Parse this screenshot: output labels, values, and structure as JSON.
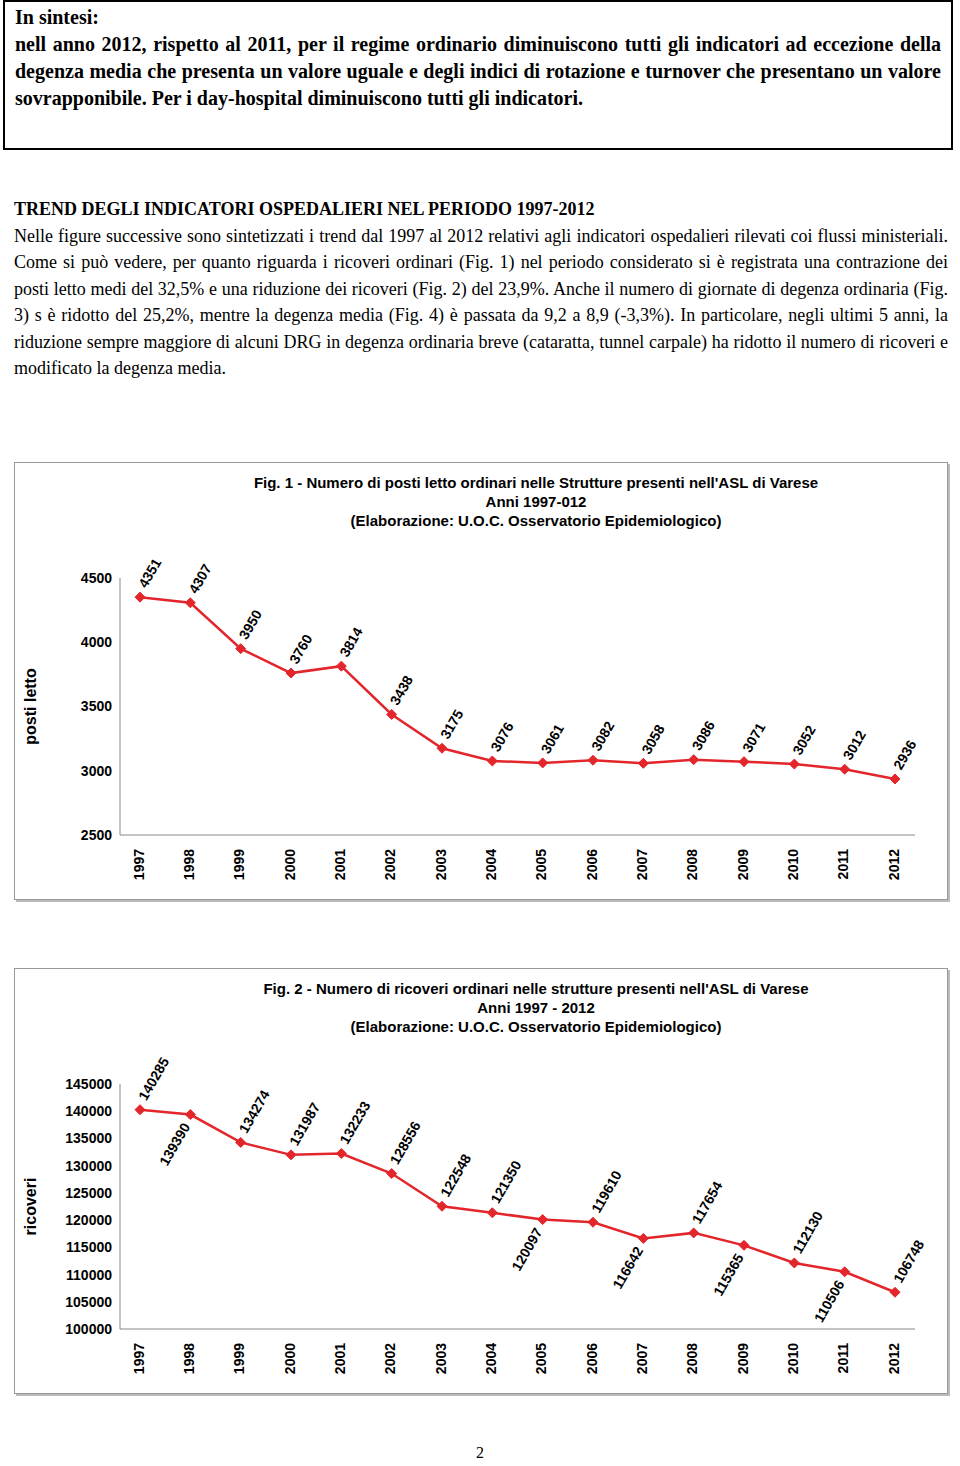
{
  "summary": {
    "title": "In sintesi:",
    "text": "nell anno 2012, rispetto al 2011, per il regime ordinario diminuiscono tutti gli indicatori ad eccezione della degenza media che presenta un valore uguale e degli indici di rotazione e turnover che presentano un valore sovrapponibile. Per i day-hospital diminuiscono tutti gli indicatori."
  },
  "section": {
    "heading": "TREND DEGLI INDICATORI OSPEDALIERI NEL PERIODO 1997-2012",
    "text": "Nelle figure successive sono sintetizzati i trend dal 1997 al 2012 relativi agli indicatori ospedalieri rilevati coi flussi ministeriali. Come si può vedere, per quanto riguarda i ricoveri ordinari (Fig. 1) nel periodo considerato si è registrata una contrazione dei posti letto medi del 32,5% e una riduzione dei ricoveri (Fig. 2) del 23,9%. Anche il numero di giornate di degenza ordinaria (Fig. 3) s è ridotto del 25,2%, mentre la degenza media (Fig. 4) è passata da 9,2 a 8,9 (-3,3%). In particolare, negli ultimi 5 anni, la riduzione sempre maggiore di alcuni DRG in degenza ordinaria breve (cataratta, tunnel carpale) ha ridotto il numero di ricoveri e modificato la degenza media."
  },
  "chart_data": [
    {
      "type": "line",
      "title": "Fig. 1 - Numero di posti letto ordinari nelle Strutture presenti nell'ASL di Varese",
      "subtitle": "Anni 1997-012",
      "source": "(Elaborazione: U.O.C. Osservatorio Epidemiologico)",
      "y_label": "posti letto",
      "categories": [
        "1997",
        "1998",
        "1999",
        "2000",
        "2001",
        "2002",
        "2003",
        "2004",
        "2005",
        "2006",
        "2007",
        "2008",
        "2009",
        "2010",
        "2011",
        "2012"
      ],
      "values": [
        4351,
        4307,
        3950,
        3760,
        3814,
        3438,
        3175,
        3076,
        3061,
        3082,
        3058,
        3086,
        3071,
        3052,
        3012,
        2936
      ],
      "color": "#e3262b",
      "marker": "diamond",
      "data_labels": true,
      "grid": false,
      "ylim": [
        2500,
        4500
      ],
      "yticks": [
        2500,
        3000,
        3500,
        4000,
        4500
      ]
    },
    {
      "type": "line",
      "title": "Fig. 2 - Numero di ricoveri ordinari nelle strutture presenti nell'ASL di Varese",
      "subtitle": "Anni 1997 - 2012",
      "source": "(Elaborazione: U.O.C. Osservatorio Epidemiologico)",
      "y_label": "ricoveri",
      "categories": [
        "1997",
        "1998",
        "1999",
        "2000",
        "2001",
        "2002",
        "2003",
        "2004",
        "2005",
        "2006",
        "2007",
        "2008",
        "2009",
        "2010",
        "2011",
        "2012"
      ],
      "values": [
        140285,
        139390,
        134274,
        131987,
        132233,
        128556,
        122548,
        121350,
        120097,
        119610,
        116642,
        117654,
        115365,
        112130,
        110506,
        106748
      ],
      "color": "#e3262b",
      "marker": "diamond",
      "data_labels": true,
      "grid": false,
      "ylim": [
        100000,
        145000
      ],
      "yticks": [
        100000,
        105000,
        110000,
        115000,
        120000,
        125000,
        130000,
        135000,
        140000,
        145000
      ]
    }
  ],
  "page_number": 2
}
